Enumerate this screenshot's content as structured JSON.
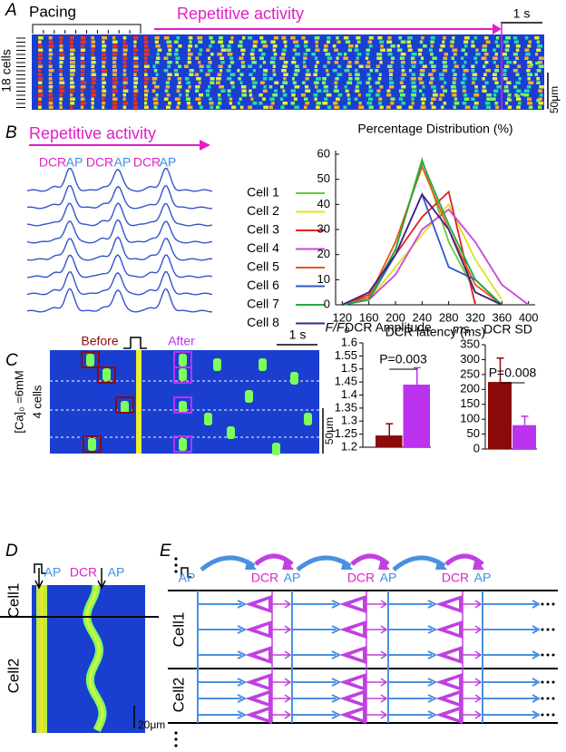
{
  "panels": {
    "a": {
      "label": "A",
      "pacing": "Pacing",
      "repetitive": "Repetitive activity",
      "scale_time": "1 s",
      "cells": "18 cells",
      "scale_space": "50μm"
    },
    "b": {
      "label": "B",
      "repetitive": "Repetitive activity",
      "trace_labels": [
        "DCR",
        "AP",
        "DCR",
        "AP",
        "DCR",
        "AP"
      ]
    },
    "c": {
      "label": "C",
      "before": "Before",
      "after": "After",
      "scale_time": "1 s",
      "condition": "[Ca]₀ =6mM",
      "cells": "4 cells",
      "scale_space": "50μm"
    },
    "d": {
      "label": "D",
      "top_labels": [
        "AP",
        "DCR",
        "AP"
      ],
      "cells": [
        "Cell1",
        "Cell2"
      ],
      "scale_space": "20μm"
    },
    "e": {
      "label": "E",
      "top_labels": [
        "AP",
        "DCR",
        "AP",
        "DCR",
        "AP",
        "DCR",
        "AP"
      ],
      "cells": [
        "Cell1",
        "Cell2"
      ]
    }
  },
  "chart_data": [
    {
      "type": "line",
      "title": "Percentage Distribution (%)",
      "x_label": "DCR latency (ms)",
      "x": [
        120,
        160,
        200,
        240,
        280,
        320,
        360,
        400
      ],
      "xlim": [
        110,
        410
      ],
      "xticks": [
        120,
        160,
        200,
        240,
        280,
        320,
        360,
        400
      ],
      "ylim": [
        0,
        60
      ],
      "yticks": [
        0,
        10,
        20,
        30,
        40,
        50,
        60
      ],
      "series": [
        {
          "name": "Cell 1",
          "color": "#66cc33",
          "values": [
            0,
            3,
            22,
            58,
            25,
            5,
            0,
            null
          ]
        },
        {
          "name": "Cell 2",
          "color": "#e0e020",
          "values": [
            0,
            2,
            15,
            28,
            40,
            18,
            2,
            null
          ]
        },
        {
          "name": "Cell 3",
          "color": "#dd2222",
          "values": [
            0,
            4,
            20,
            35,
            45,
            0,
            null,
            null
          ]
        },
        {
          "name": "Cell 4",
          "color": "#cc44dd",
          "values": [
            0,
            2,
            12,
            30,
            38,
            25,
            8,
            0
          ]
        },
        {
          "name": "Cell 5",
          "color": "#ee5511",
          "values": [
            0,
            3,
            25,
            55,
            30,
            8,
            0,
            null
          ]
        },
        {
          "name": "Cell 6",
          "color": "#3355cc",
          "values": [
            0,
            2,
            20,
            44,
            15,
            10,
            0,
            null
          ]
        },
        {
          "name": "Cell 7",
          "color": "#22aa44",
          "values": [
            0,
            2,
            22,
            57,
            32,
            10,
            0,
            null
          ]
        },
        {
          "name": "Cell 8",
          "color": "#442288",
          "values": [
            0,
            5,
            20,
            44,
            30,
            5,
            0,
            null
          ]
        }
      ]
    },
    {
      "type": "bar",
      "title": "DCR Amplitude",
      "y_label": "F/F₀",
      "values": [
        1.245,
        1.44
      ],
      "errors": [
        0.045,
        0.065
      ],
      "colors": [
        "#8b0a0a",
        "#bb33ee"
      ],
      "ylim": [
        1.2,
        1.6
      ],
      "yticks": [
        1.2,
        1.25,
        1.3,
        1.35,
        1.4,
        1.45,
        1.5,
        1.55,
        1.6
      ],
      "annotation": "P=0.003"
    },
    {
      "type": "bar",
      "title": "DCR SD",
      "y_label": "ms",
      "values": [
        225,
        80
      ],
      "errors": [
        80,
        30
      ],
      "colors": [
        "#8b0a0a",
        "#bb33ee"
      ],
      "ylim": [
        0,
        350
      ],
      "yticks": [
        0,
        50,
        100,
        150,
        200,
        250,
        300,
        350
      ],
      "annotation": "P=0.008"
    }
  ]
}
